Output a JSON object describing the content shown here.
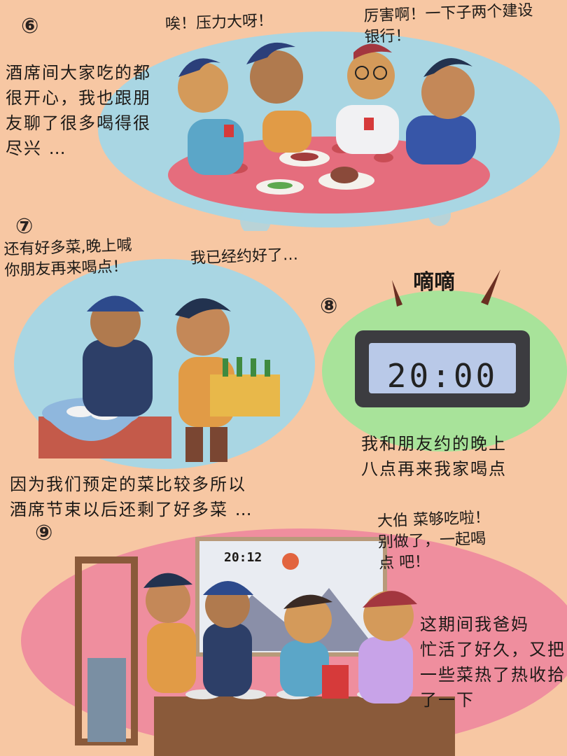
{
  "panels": [
    {
      "number": "⑥",
      "caption": "酒席间大家吃的都\n很开心，我也跟朋\n友聊了很多喝得很\n尽兴 …",
      "speech": [
        "唉！压力大呀！",
        "厉害啊！一下子两个建设\n银行！"
      ]
    },
    {
      "number": "⑦",
      "caption": "因为我们预定的菜比较多所以\n酒席节束以后还剩了好多菜 …",
      "speech": [
        "还有好多菜,晚上喊\n你朋友再来喝点！",
        "我已经约好了…"
      ]
    },
    {
      "number": "⑧",
      "sound_effect": "嘀嘀",
      "clock_time": "20:00",
      "caption": "我和朋友约的晚上\n八点再来我家喝点"
    },
    {
      "number": "⑨",
      "wall_clock": "20:12",
      "speech": [
        "大伯 菜够吃啦！\n别做了，一起喝\n点 吧！"
      ],
      "caption": "这期间我爸妈\n忙活了好久，又把\n一些菜热了热收拾\n了一下"
    }
  ],
  "colors": {
    "background": "#f7c7a3",
    "blue_blob": "#a9d6e3",
    "pink_table": "#e56d7d",
    "green_glow": "#a8e39a",
    "pink_blob": "#ef8e9e",
    "clock_body": "#3c3c40",
    "clock_screen": "#b9c9e8"
  }
}
